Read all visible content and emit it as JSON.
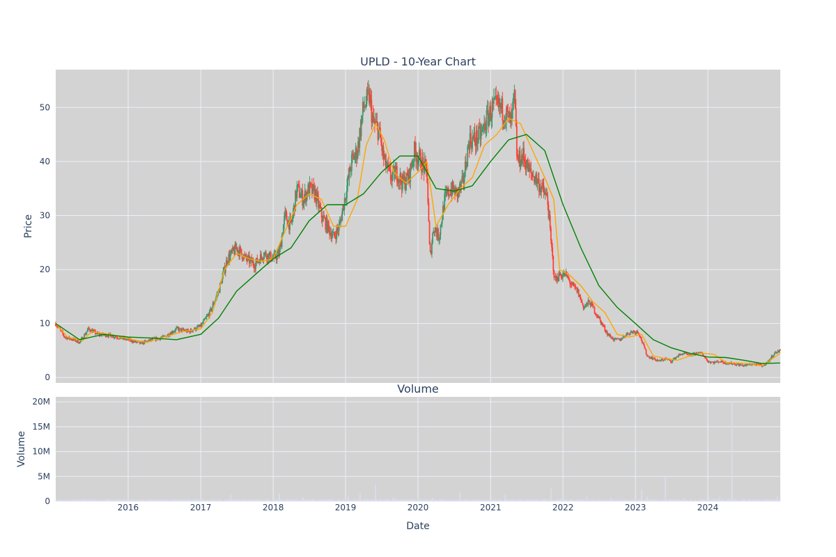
{
  "chart_data": [
    {
      "type": "candlestick",
      "title": "UPLD - 10-Year Chart",
      "xlabel": "",
      "ylabel": "Price",
      "ylim": [
        -1,
        57
      ],
      "yticks": [
        0,
        10,
        20,
        30,
        40,
        50
      ],
      "xlim": [
        "2015-01-01",
        "2024-12-31"
      ],
      "grid": true,
      "colors": {
        "up": "#3d9970",
        "down": "#ff4136",
        "ma_short": "#ffa500",
        "ma_long": "#008000",
        "plot_bg": "#d3d3d3",
        "grid": "#ebf0f8"
      },
      "series": [
        {
          "name": "",
          "kind": "ohlc-close-trend",
          "x": [
            "2015-01-01",
            "2015-02-15",
            "2015-04-01",
            "2015-05-01",
            "2015-06-15",
            "2015-08-01",
            "2015-10-01",
            "2016-01-01",
            "2016-03-01",
            "2016-05-01",
            "2016-07-01",
            "2016-09-01",
            "2016-11-01",
            "2017-01-01",
            "2017-02-15",
            "2017-04-01",
            "2017-05-15",
            "2017-07-01",
            "2017-08-15",
            "2017-10-01",
            "2017-11-15",
            "2018-01-01",
            "2018-02-01",
            "2018-03-01",
            "2018-04-01",
            "2018-05-01",
            "2018-06-01",
            "2018-07-01",
            "2018-08-01",
            "2018-09-01",
            "2018-10-01",
            "2018-11-01",
            "2018-12-01",
            "2019-01-01",
            "2019-02-01",
            "2019-03-01",
            "2019-04-01",
            "2019-05-01",
            "2019-05-20",
            "2019-06-15",
            "2019-07-15",
            "2019-08-15",
            "2019-09-15",
            "2019-10-15",
            "2019-11-15",
            "2019-12-15",
            "2020-01-15",
            "2020-02-15",
            "2020-03-01",
            "2020-03-20",
            "2020-04-15",
            "2020-05-15",
            "2020-06-15",
            "2020-07-15",
            "2020-08-15",
            "2020-09-15",
            "2020-10-15",
            "2020-11-15",
            "2020-12-15",
            "2021-01-15",
            "2021-02-15",
            "2021-03-15",
            "2021-04-15",
            "2021-05-01",
            "2021-05-15",
            "2021-06-15",
            "2021-07-15",
            "2021-08-15",
            "2021-09-15",
            "2021-10-15",
            "2021-11-01",
            "2021-11-20",
            "2021-12-15",
            "2022-01-15",
            "2022-02-15",
            "2022-03-15",
            "2022-04-15",
            "2022-05-15",
            "2022-06-15",
            "2022-07-15",
            "2022-08-15",
            "2022-09-15",
            "2022-10-15",
            "2022-11-15",
            "2022-12-15",
            "2023-01-15",
            "2023-02-15",
            "2023-03-01",
            "2023-04-01",
            "2023-05-01",
            "2023-06-01",
            "2023-07-01",
            "2023-08-01",
            "2023-09-01",
            "2023-10-01",
            "2023-11-01",
            "2023-12-01",
            "2024-01-01",
            "2024-02-01",
            "2024-03-01",
            "2024-04-01",
            "2024-05-01",
            "2024-06-01",
            "2024-07-01",
            "2024-08-01",
            "2024-09-01",
            "2024-10-01",
            "2024-11-01",
            "2024-12-01",
            "2024-12-31"
          ],
          "close": [
            10,
            7.5,
            7,
            6.5,
            9,
            8,
            7.8,
            7,
            6.3,
            7,
            7.5,
            9,
            8.5,
            9.5,
            12,
            16,
            22,
            24,
            22,
            21,
            23,
            22,
            23,
            30,
            28,
            35,
            33,
            35,
            34,
            30,
            28,
            26,
            28,
            34,
            40,
            42,
            50,
            52,
            47,
            46,
            40,
            37,
            38,
            36,
            37,
            42,
            40,
            38,
            22,
            28,
            26,
            33,
            35,
            34,
            36,
            44,
            44,
            45,
            48,
            50,
            50,
            49,
            47,
            52,
            40,
            41,
            38,
            37,
            35,
            33,
            25,
            18,
            19,
            19,
            17,
            16,
            13,
            14,
            12,
            10,
            8,
            7,
            7,
            8,
            8.5,
            8.5,
            5.5,
            4,
            3.5,
            3,
            3.5,
            3,
            4,
            4.5,
            4,
            4.5,
            4.5,
            3,
            2.8,
            3,
            2.7,
            2.6,
            2.4,
            2.2,
            2.5,
            2.4,
            2.2,
            3,
            4.5,
            5
          ]
        },
        {
          "name": "",
          "kind": "moving-average-short",
          "x": [
            "2015-01-01",
            "2015-03-01",
            "2015-05-15",
            "2015-07-01",
            "2015-10-01",
            "2016-01-01",
            "2016-04-01",
            "2016-07-01",
            "2016-10-01",
            "2017-01-01",
            "2017-03-01",
            "2017-05-01",
            "2017-07-01",
            "2017-09-01",
            "2017-11-01",
            "2018-01-01",
            "2018-03-01",
            "2018-05-01",
            "2018-07-01",
            "2018-09-01",
            "2018-11-01",
            "2019-01-01",
            "2019-03-01",
            "2019-04-15",
            "2019-06-01",
            "2019-07-15",
            "2019-09-01",
            "2019-11-01",
            "2020-01-01",
            "2020-02-15",
            "2020-04-01",
            "2020-06-01",
            "2020-08-01",
            "2020-10-01",
            "2020-12-01",
            "2021-02-01",
            "2021-04-01",
            "2021-06-01",
            "2021-08-01",
            "2021-10-01",
            "2021-11-15",
            "2021-12-15",
            "2022-02-01",
            "2022-04-01",
            "2022-06-01",
            "2022-08-01",
            "2022-10-01",
            "2022-12-01",
            "2023-02-01",
            "2023-04-01",
            "2023-06-01",
            "2023-08-01",
            "2023-10-01",
            "2023-12-01",
            "2024-02-01",
            "2024-04-01",
            "2024-06-01",
            "2024-08-01",
            "2024-10-01",
            "2024-12-31"
          ],
          "values": [
            10,
            7.5,
            6.8,
            8.5,
            8,
            7.2,
            6.5,
            7.5,
            8.5,
            9,
            12,
            20,
            23,
            22,
            21.5,
            22,
            27,
            32,
            34,
            33,
            28,
            28,
            33,
            43,
            47,
            44,
            38,
            36,
            38,
            40,
            28,
            32,
            35,
            37,
            43,
            45,
            48,
            47,
            42,
            37,
            33,
            20,
            19,
            17,
            14,
            12,
            8,
            7.5,
            8,
            4,
            3.5,
            3.2,
            4,
            4.5,
            4.3,
            2.8,
            2.7,
            2.5,
            2.2,
            4.5
          ]
        },
        {
          "name": "",
          "kind": "moving-average-long",
          "x": [
            "2015-01-01",
            "2015-05-01",
            "2015-09-01",
            "2016-01-01",
            "2016-05-01",
            "2016-09-01",
            "2017-01-01",
            "2017-04-01",
            "2017-07-01",
            "2017-10-01",
            "2018-01-01",
            "2018-04-01",
            "2018-07-01",
            "2018-10-01",
            "2019-01-01",
            "2019-04-01",
            "2019-07-01",
            "2019-10-01",
            "2020-01-01",
            "2020-04-01",
            "2020-07-01",
            "2020-10-01",
            "2021-01-01",
            "2021-04-01",
            "2021-07-01",
            "2021-10-01",
            "2022-01-01",
            "2022-04-01",
            "2022-07-01",
            "2022-10-01",
            "2023-01-01",
            "2023-04-01",
            "2023-07-01",
            "2023-10-01",
            "2024-01-01",
            "2024-04-01",
            "2024-07-01",
            "2024-10-01",
            "2024-12-31"
          ],
          "values": [
            10,
            7,
            8,
            7.5,
            7.3,
            7,
            8,
            11,
            16,
            19,
            22,
            24,
            29,
            32,
            32,
            34,
            38,
            41,
            41,
            35,
            34.5,
            35.5,
            40,
            44,
            45,
            42,
            32,
            24,
            17,
            13,
            10,
            7,
            5.5,
            4.5,
            3.8,
            3.7,
            3.2,
            2.6,
            2.7
          ]
        }
      ]
    },
    {
      "type": "bar",
      "title": "Volume",
      "xlabel": "Date",
      "ylabel": "Volume",
      "ylim": [
        0,
        21000000
      ],
      "yticks": [
        0,
        5000000,
        10000000,
        15000000,
        20000000
      ],
      "ytick_labels": [
        "0",
        "5M",
        "10M",
        "15M",
        "20M"
      ],
      "xtick_labels": [
        "2016",
        "2017",
        "2018",
        "2019",
        "2020",
        "2021",
        "2022",
        "2023",
        "2024"
      ],
      "grid": true,
      "colors": {
        "bar": "#dcdcf0"
      },
      "series": [
        {
          "name": "",
          "x": [
            "2015-06-01",
            "2017-06-01",
            "2018-02-01",
            "2018-06-01",
            "2019-01-15",
            "2019-03-15",
            "2019-06-01",
            "2019-09-01",
            "2020-03-15",
            "2020-08-01",
            "2021-03-15",
            "2021-11-01",
            "2022-05-01",
            "2022-09-01",
            "2023-02-01",
            "2023-03-01",
            "2023-06-01",
            "2023-09-01",
            "2024-03-01",
            "2024-05-01",
            "2024-05-03",
            "2024-12-15"
          ],
          "values": [
            300000,
            1300000,
            1500000,
            800000,
            1000000,
            1600000,
            3300000,
            800000,
            700000,
            1800000,
            1300000,
            2600000,
            900000,
            800000,
            2400000,
            900000,
            4900000,
            700000,
            800000,
            20000000,
            4900000,
            1000000
          ]
        }
      ]
    }
  ]
}
